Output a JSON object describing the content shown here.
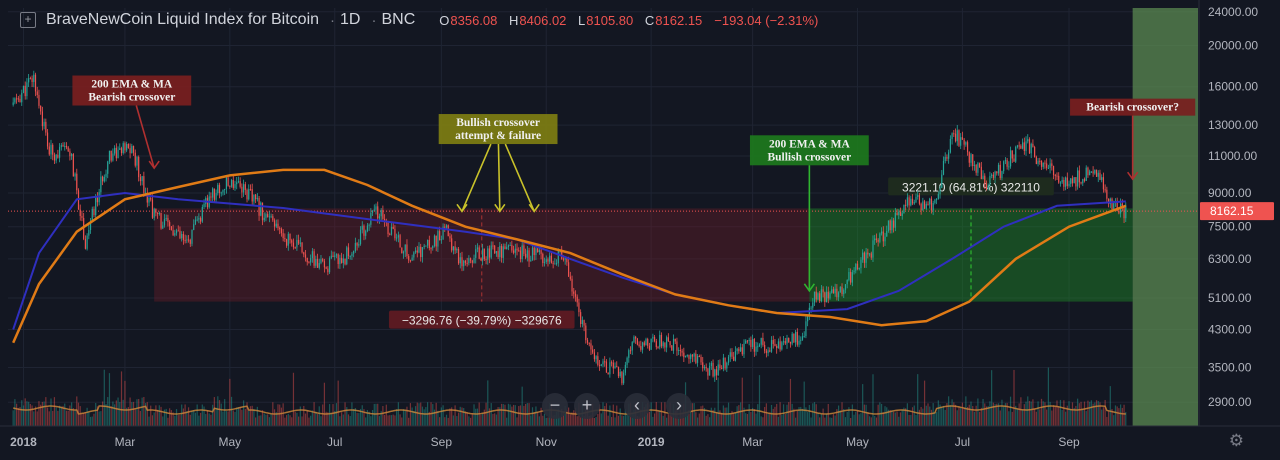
{
  "header": {
    "symbol_title": "BraveNewCoin Liquid Index for Bitcoin",
    "interval": "1D",
    "exchange": "BNC",
    "open_label": "O",
    "open": "8356.08",
    "high_label": "H",
    "high": "8406.02",
    "low_label": "L",
    "low": "8105.80",
    "close_label": "C",
    "close": "8162.15",
    "change": "−193.04 (−2.31%)"
  },
  "price_tag": "8162.15",
  "controls": {
    "zoom_out": "−",
    "zoom_in": "+",
    "scroll_left": "‹",
    "scroll_right": "›",
    "settings": "⚙"
  },
  "colors": {
    "background": "#131722",
    "up": "#26a69a",
    "down": "#ef5350",
    "ma200": "#2f2fbf",
    "ema200": "#e07b16"
  },
  "chart_data": {
    "type": "candlestick",
    "y_scale": "log",
    "ylim": [
      2550,
      24500
    ],
    "y_ticks": [
      "24000.00",
      "20000.00",
      "16000.00",
      "13000.00",
      "11000.00",
      "9000.00",
      "7500.00",
      "6300.00",
      "5100.00",
      "4300.00",
      "3500.00",
      "2900.00"
    ],
    "x_ticks": [
      "2018",
      "Mar",
      "May",
      "Jul",
      "Sep",
      "Nov",
      "2019",
      "Mar",
      "May",
      "Jul",
      "Sep"
    ],
    "price_keypoints": [
      [
        "2017-12-26",
        14500
      ],
      [
        "2018-01-07",
        16800
      ],
      [
        "2018-01-16",
        11200
      ],
      [
        "2018-01-28",
        11300
      ],
      [
        "2018-02-06",
        6900
      ],
      [
        "2018-02-20",
        11200
      ],
      [
        "2018-03-05",
        11400
      ],
      [
        "2018-03-18",
        8000
      ],
      [
        "2018-04-06",
        6800
      ],
      [
        "2018-04-20",
        8900
      ],
      [
        "2018-05-05",
        9700
      ],
      [
        "2018-05-28",
        7400
      ],
      [
        "2018-06-24",
        6000
      ],
      [
        "2018-07-10",
        6500
      ],
      [
        "2018-07-25",
        8200
      ],
      [
        "2018-08-14",
        6300
      ],
      [
        "2018-09-04",
        7300
      ],
      [
        "2018-09-12",
        6300
      ],
      [
        "2018-10-01",
        6600
      ],
      [
        "2018-10-20",
        6500
      ],
      [
        "2018-11-10",
        6400
      ],
      [
        "2018-11-16",
        5500
      ],
      [
        "2018-11-25",
        3900
      ],
      [
        "2018-12-15",
        3300
      ],
      [
        "2018-12-22",
        4000
      ],
      [
        "2019-01-08",
        4050
      ],
      [
        "2019-02-07",
        3420
      ],
      [
        "2019-02-24",
        3880
      ],
      [
        "2019-03-31",
        4100
      ],
      [
        "2019-04-03",
        5000
      ],
      [
        "2019-04-20",
        5300
      ],
      [
        "2019-05-11",
        6800
      ],
      [
        "2019-05-31",
        8600
      ],
      [
        "2019-06-14",
        8500
      ],
      [
        "2019-06-26",
        12500
      ],
      [
        "2019-07-16",
        9500
      ],
      [
        "2019-08-06",
        11800
      ],
      [
        "2019-08-28",
        9500
      ],
      [
        "2019-09-18",
        10200
      ],
      [
        "2019-09-24",
        8600
      ],
      [
        "2019-10-04",
        8162
      ]
    ],
    "series": [
      {
        "name": "200 MA",
        "points": [
          [
            "2017-12-26",
            4300
          ],
          [
            "2018-01-10",
            6500
          ],
          [
            "2018-02-01",
            8700
          ],
          [
            "2018-03-01",
            9000
          ],
          [
            "2018-04-01",
            8700
          ],
          [
            "2018-06-01",
            8300
          ],
          [
            "2018-08-01",
            7700
          ],
          [
            "2018-09-15",
            7300
          ],
          [
            "2018-10-15",
            7000
          ],
          [
            "2018-11-15",
            6300
          ],
          [
            "2018-12-15",
            5700
          ],
          [
            "2019-01-15",
            5200
          ],
          [
            "2019-02-15",
            4900
          ],
          [
            "2019-03-15",
            4700
          ],
          [
            "2019-04-25",
            4800
          ],
          [
            "2019-05-25",
            5300
          ],
          [
            "2019-06-25",
            6300
          ],
          [
            "2019-07-25",
            7500
          ],
          [
            "2019-08-25",
            8400
          ],
          [
            "2019-10-04",
            8600
          ]
        ]
      },
      {
        "name": "200 EMA",
        "points": [
          [
            "2017-12-26",
            4000
          ],
          [
            "2018-01-10",
            5500
          ],
          [
            "2018-02-01",
            7300
          ],
          [
            "2018-03-01",
            8700
          ],
          [
            "2018-04-01",
            9300
          ],
          [
            "2018-05-01",
            9900
          ],
          [
            "2018-06-01",
            10200
          ],
          [
            "2018-06-25",
            10200
          ],
          [
            "2018-07-20",
            9400
          ],
          [
            "2018-08-15",
            8400
          ],
          [
            "2018-09-15",
            7500
          ],
          [
            "2018-10-15",
            7000
          ],
          [
            "2018-11-15",
            6500
          ],
          [
            "2018-12-15",
            5800
          ],
          [
            "2019-01-15",
            5200
          ],
          [
            "2019-02-15",
            4900
          ],
          [
            "2019-03-15",
            4700
          ],
          [
            "2019-04-15",
            4600
          ],
          [
            "2019-05-15",
            4400
          ],
          [
            "2019-06-10",
            4500
          ],
          [
            "2019-07-05",
            5000
          ],
          [
            "2019-08-01",
            6300
          ],
          [
            "2019-09-01",
            7500
          ],
          [
            "2019-10-04",
            8400
          ]
        ]
      }
    ],
    "measure_ranges": [
      {
        "label": "−3296.76 (−39.79%) −329676",
        "x": [
          "2018-03-18",
          "2019-04-03"
        ],
        "y": [
          5000,
          8280
        ],
        "direction": "down"
      },
      {
        "label": "3221.10 (64.81%) 322110",
        "x": [
          "2019-04-03",
          "2019-10-08"
        ],
        "y": [
          5000,
          8280
        ],
        "direction": "up"
      }
    ],
    "annotations": [
      {
        "text": [
          "200 EMA & MA",
          "Bearish crossover"
        ],
        "date": "2018-03-05",
        "price": 17000,
        "color": "#7a1f1f",
        "arrow_to": [
          "2018-03-18",
          10300
        ]
      },
      {
        "text": [
          "Bullish crossover",
          "attempt & failure"
        ],
        "date": "2018-10-04",
        "price": 13800,
        "color": "#7e7e12",
        "arrows_to": [
          [
            "2018-09-13",
            8150
          ],
          [
            "2018-10-05",
            8150
          ],
          [
            "2018-10-25",
            8150
          ]
        ]
      },
      {
        "text": [
          "200 EMA & MA",
          "Bullish crossover"
        ],
        "date": "2019-04-03",
        "price": 12300,
        "color": "#1d7a1d",
        "arrow_to": [
          "2019-04-03",
          5300
        ]
      },
      {
        "text": [
          "Bearish crossover?"
        ],
        "date": "2019-10-08",
        "price": 15000,
        "color": "#7a1f1f",
        "arrow_to": [
          "2019-10-08",
          9700
        ]
      }
    ],
    "current_price": 8162.15,
    "volume": "histogram of daily volume with moving average line",
    "grid": true
  }
}
